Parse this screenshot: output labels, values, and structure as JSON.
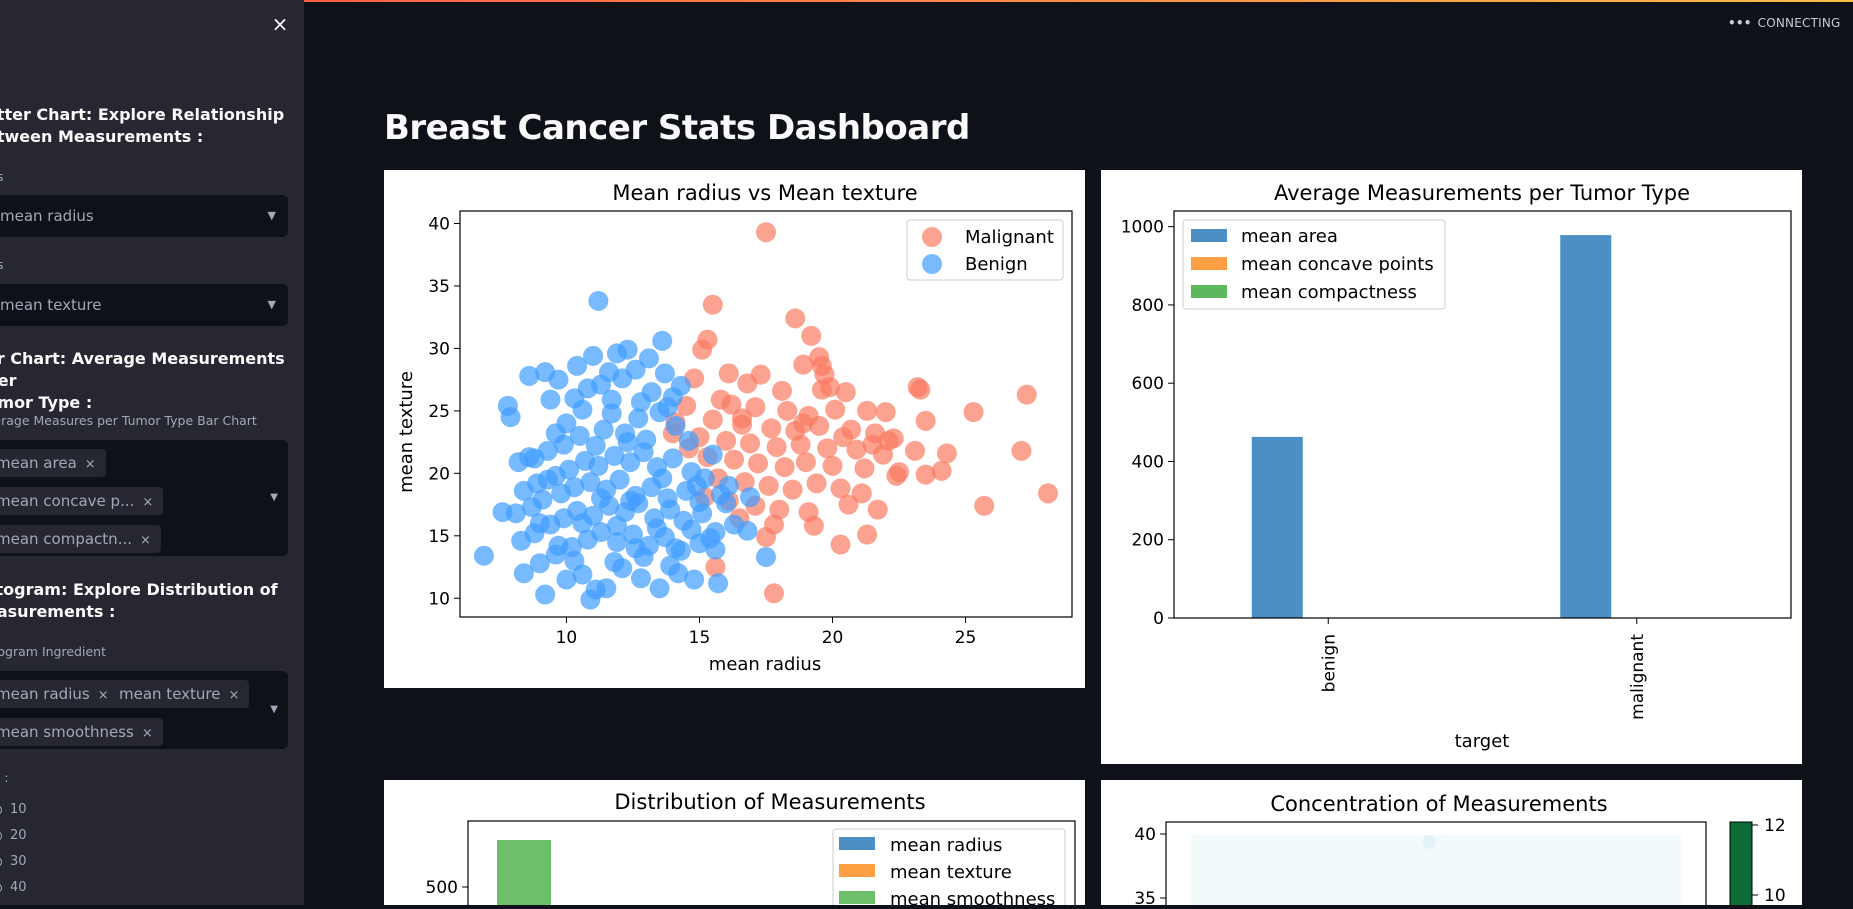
{
  "status": {
    "dots": "•••",
    "text": "CONNECTING"
  },
  "page_title": "Breast Cancer Stats Dashboard",
  "sidebar": {
    "close": "×",
    "scatter_heading": "atter Chart: Explore Relationship etween Measurements :",
    "scatter_heading_l1": "atter Chart: Explore Relationship",
    "scatter_heading_l2": "etween Measurements :",
    "x_label": "xis",
    "x_value": "mean radius",
    "y_label": "xis",
    "y_value": "mean texture",
    "bar_heading_l1": "ar Chart: Average Measurements Per",
    "bar_heading_l2": "umor Type :",
    "bar_label": "verage Measures per Tumor Type Bar Chart",
    "bar_chips": [
      "mean area",
      "mean concave p...",
      "mean compactn..."
    ],
    "hist_heading_l1": "stogram: Explore Distribution of",
    "hist_heading_l2": "easurements :",
    "hist_label": "stogram Ingredient",
    "hist_chips": [
      "mean radius",
      "mean texture",
      "mean smoothness"
    ],
    "bins_label": "ns :",
    "bins": [
      "10",
      "20",
      "30",
      "40"
    ],
    "chip_x": "×",
    "caret": "▼"
  },
  "colors": {
    "malignant": "#fa7a62",
    "benign": "#3f9cff",
    "area": "#4c8fc4",
    "concave": "#ff9f43",
    "compact": "#5cb85c",
    "smooth": "#6dbf6a"
  },
  "chart_data": [
    {
      "type": "scatter",
      "title": "Mean radius vs Mean texture",
      "xlabel": "mean radius",
      "ylabel": "mean texture",
      "xlim": [
        6,
        29
      ],
      "ylim": [
        8.5,
        41
      ],
      "xticks": [
        10,
        15,
        20,
        25
      ],
      "yticks": [
        10,
        15,
        20,
        25,
        30,
        35,
        40
      ],
      "legend": "top-right",
      "series": [
        {
          "name": "Malignant",
          "points": [
            [
              17.5,
              39.3
            ],
            [
              15.5,
              33.5
            ],
            [
              18.6,
              32.4
            ],
            [
              19.2,
              31.0
            ],
            [
              15.3,
              30.7
            ],
            [
              15.1,
              29.9
            ],
            [
              18.9,
              28.7
            ],
            [
              19.6,
              28.6
            ],
            [
              19.5,
              29.3
            ],
            [
              16.1,
              28.0
            ],
            [
              17.3,
              27.9
            ],
            [
              14.8,
              27.6
            ],
            [
              16.8,
              27.2
            ],
            [
              18.1,
              26.6
            ],
            [
              19.6,
              26.7
            ],
            [
              19.9,
              26.9
            ],
            [
              20.5,
              26.5
            ],
            [
              23.2,
              26.9
            ],
            [
              23.3,
              26.7
            ],
            [
              27.3,
              26.3
            ],
            [
              15.8,
              25.9
            ],
            [
              14.5,
              25.4
            ],
            [
              16.2,
              25.5
            ],
            [
              17.1,
              25.3
            ],
            [
              18.3,
              25.0
            ],
            [
              19.1,
              24.6
            ],
            [
              20.1,
              25.1
            ],
            [
              21.3,
              25.0
            ],
            [
              22.0,
              24.9
            ],
            [
              25.3,
              24.9
            ],
            [
              23.5,
              24.2
            ],
            [
              14.1,
              24.1
            ],
            [
              15.5,
              24.3
            ],
            [
              16.6,
              23.9
            ],
            [
              17.7,
              23.6
            ],
            [
              18.6,
              23.4
            ],
            [
              19.5,
              23.8
            ],
            [
              20.7,
              23.5
            ],
            [
              21.6,
              23.2
            ],
            [
              22.3,
              22.8
            ],
            [
              15.0,
              22.9
            ],
            [
              16.0,
              22.6
            ],
            [
              16.9,
              22.4
            ],
            [
              17.9,
              22.1
            ],
            [
              18.8,
              22.3
            ],
            [
              19.8,
              22.0
            ],
            [
              20.9,
              21.9
            ],
            [
              21.9,
              21.5
            ],
            [
              23.1,
              21.8
            ],
            [
              24.3,
              21.6
            ],
            [
              27.1,
              21.8
            ],
            [
              15.3,
              21.3
            ],
            [
              16.3,
              21.1
            ],
            [
              17.2,
              20.8
            ],
            [
              18.2,
              20.5
            ],
            [
              19.0,
              20.9
            ],
            [
              20.0,
              20.6
            ],
            [
              21.2,
              20.4
            ],
            [
              22.5,
              20.1
            ],
            [
              24.1,
              20.2
            ],
            [
              28.1,
              18.4
            ],
            [
              15.7,
              19.6
            ],
            [
              16.7,
              19.3
            ],
            [
              17.6,
              19.0
            ],
            [
              18.5,
              18.7
            ],
            [
              19.4,
              19.2
            ],
            [
              20.3,
              18.8
            ],
            [
              21.1,
              18.4
            ],
            [
              22.4,
              19.8
            ],
            [
              23.5,
              19.9
            ],
            [
              15.2,
              18.1
            ],
            [
              16.1,
              17.8
            ],
            [
              17.1,
              17.4
            ],
            [
              18.0,
              17.1
            ],
            [
              19.1,
              16.9
            ],
            [
              20.6,
              17.5
            ],
            [
              21.7,
              17.1
            ],
            [
              25.7,
              17.4
            ],
            [
              16.5,
              16.4
            ],
            [
              17.8,
              15.9
            ],
            [
              19.3,
              15.8
            ],
            [
              20.3,
              14.3
            ],
            [
              21.3,
              15.1
            ],
            [
              17.5,
              14.9
            ],
            [
              15.6,
              12.5
            ],
            [
              17.8,
              10.4
            ],
            [
              14.6,
              22.0
            ],
            [
              16.6,
              24.4
            ],
            [
              18.9,
              24.0
            ],
            [
              20.4,
              22.9
            ],
            [
              22.1,
              22.6
            ],
            [
              14.0,
              23.2
            ],
            [
              19.7,
              27.9
            ],
            [
              21.5,
              22.3
            ]
          ]
        },
        {
          "name": "Benign",
          "points": [
            [
              11.2,
              33.8
            ],
            [
              7.8,
              25.4
            ],
            [
              7.9,
              24.5
            ],
            [
              8.6,
              27.8
            ],
            [
              9.2,
              28.1
            ],
            [
              9.7,
              27.5
            ],
            [
              11.0,
              29.4
            ],
            [
              11.9,
              29.6
            ],
            [
              12.3,
              29.9
            ],
            [
              13.1,
              29.2
            ],
            [
              13.6,
              30.6
            ],
            [
              12.6,
              28.3
            ],
            [
              11.6,
              28.1
            ],
            [
              10.4,
              28.6
            ],
            [
              13.7,
              28.0
            ],
            [
              14.3,
              27.0
            ],
            [
              10.8,
              26.8
            ],
            [
              11.3,
              27.1
            ],
            [
              12.1,
              27.6
            ],
            [
              13.2,
              26.5
            ],
            [
              14.0,
              26.1
            ],
            [
              9.4,
              25.9
            ],
            [
              10.6,
              25.1
            ],
            [
              11.7,
              24.8
            ],
            [
              12.7,
              24.4
            ],
            [
              13.5,
              24.9
            ],
            [
              8.2,
              20.9
            ],
            [
              8.8,
              21.2
            ],
            [
              9.3,
              21.8
            ],
            [
              9.9,
              22.3
            ],
            [
              10.5,
              23.0
            ],
            [
              11.4,
              23.5
            ],
            [
              12.2,
              23.2
            ],
            [
              13.0,
              22.7
            ],
            [
              14.1,
              23.8
            ],
            [
              14.6,
              22.6
            ],
            [
              8.4,
              18.6
            ],
            [
              8.9,
              19.2
            ],
            [
              9.6,
              19.8
            ],
            [
              10.1,
              20.3
            ],
            [
              10.7,
              21.0
            ],
            [
              11.2,
              20.6
            ],
            [
              11.8,
              21.4
            ],
            [
              12.4,
              20.9
            ],
            [
              12.9,
              21.7
            ],
            [
              13.4,
              20.5
            ],
            [
              14.0,
              21.2
            ],
            [
              14.7,
              20.1
            ],
            [
              15.2,
              19.6
            ],
            [
              8.1,
              16.8
            ],
            [
              8.7,
              17.3
            ],
            [
              9.1,
              17.9
            ],
            [
              9.8,
              18.4
            ],
            [
              10.3,
              18.9
            ],
            [
              10.9,
              19.3
            ],
            [
              11.5,
              18.7
            ],
            [
              12.0,
              19.5
            ],
            [
              12.6,
              18.2
            ],
            [
              13.2,
              18.9
            ],
            [
              13.8,
              18.0
            ],
            [
              14.5,
              18.6
            ],
            [
              15.0,
              17.7
            ],
            [
              15.8,
              18.3
            ],
            [
              6.9,
              13.4
            ],
            [
              8.3,
              14.6
            ],
            [
              8.8,
              15.2
            ],
            [
              9.4,
              15.9
            ],
            [
              9.9,
              16.4
            ],
            [
              10.4,
              17.0
            ],
            [
              11.0,
              16.6
            ],
            [
              11.6,
              17.4
            ],
            [
              12.2,
              16.9
            ],
            [
              12.7,
              17.6
            ],
            [
              13.3,
              16.4
            ],
            [
              13.9,
              17.1
            ],
            [
              14.4,
              16.2
            ],
            [
              15.1,
              16.8
            ],
            [
              15.6,
              15.3
            ],
            [
              16.3,
              15.9
            ],
            [
              16.9,
              18.1
            ],
            [
              8.4,
              12.0
            ],
            [
              9.0,
              12.8
            ],
            [
              9.6,
              13.5
            ],
            [
              10.2,
              14.1
            ],
            [
              10.8,
              14.7
            ],
            [
              11.3,
              15.3
            ],
            [
              11.9,
              14.5
            ],
            [
              12.5,
              15.1
            ],
            [
              13.1,
              14.2
            ],
            [
              13.7,
              14.9
            ],
            [
              14.3,
              13.8
            ],
            [
              15.0,
              14.4
            ],
            [
              15.6,
              13.9
            ],
            [
              10.6,
              11.9
            ],
            [
              11.1,
              10.7
            ],
            [
              11.5,
              10.8
            ],
            [
              12.1,
              12.4
            ],
            [
              12.8,
              11.6
            ],
            [
              13.5,
              10.8
            ],
            [
              14.2,
              12.0
            ],
            [
              14.8,
              11.5
            ],
            [
              15.7,
              11.2
            ],
            [
              10.9,
              9.9
            ],
            [
              17.5,
              13.3
            ],
            [
              9.2,
              10.3
            ],
            [
              10.0,
              11.5
            ],
            [
              11.8,
              12.9
            ],
            [
              12.9,
              13.3
            ],
            [
              13.9,
              12.6
            ],
            [
              12.3,
              22.5
            ],
            [
              11.1,
              22.2
            ],
            [
              10.0,
              24.0
            ],
            [
              13.8,
              25.3
            ],
            [
              12.8,
              25.7
            ],
            [
              11.7,
              25.9
            ],
            [
              9.6,
              23.2
            ],
            [
              10.3,
              26.0
            ],
            [
              9.0,
              16.0
            ],
            [
              9.7,
              14.2
            ],
            [
              14.9,
              19.0
            ],
            [
              15.5,
              21.5
            ],
            [
              13.6,
              19.6
            ],
            [
              12.4,
              17.8
            ],
            [
              11.3,
              18.0
            ],
            [
              10.6,
              16.0
            ],
            [
              11.9,
              15.8
            ],
            [
              12.6,
              14.0
            ],
            [
              13.4,
              15.6
            ],
            [
              14.1,
              14.0
            ],
            [
              10.3,
              13.0
            ],
            [
              9.3,
              19.5
            ],
            [
              8.6,
              21.3
            ],
            [
              7.6,
              16.9
            ],
            [
              16.1,
              19.0
            ],
            [
              16.0,
              17.6
            ],
            [
              15.4,
              14.8
            ],
            [
              14.7,
              15.5
            ],
            [
              16.8,
              15.4
            ]
          ]
        }
      ]
    },
    {
      "type": "bar",
      "title": "Average Measurements per Tumor Type",
      "xlabel": "target",
      "ylabel": "",
      "categories": [
        "benign",
        "malignant"
      ],
      "ylim": [
        0,
        1040
      ],
      "yticks": [
        0,
        200,
        400,
        600,
        800,
        1000
      ],
      "legend": "top-left",
      "series": [
        {
          "name": "mean area",
          "values": [
            462.8,
            978.4
          ]
        },
        {
          "name": "mean concave points",
          "values": [
            0.026,
            0.088
          ]
        },
        {
          "name": "mean compactness",
          "values": [
            0.08,
            0.145
          ]
        }
      ]
    },
    {
      "type": "bar",
      "title": "Distribution of Measurements",
      "yticks": [
        500
      ],
      "legend": "top-right",
      "series": [
        {
          "name": "mean radius"
        },
        {
          "name": "mean texture"
        },
        {
          "name": "mean smoothness"
        }
      ]
    },
    {
      "type": "heatmap",
      "title": "Concentration of Measurements",
      "yticks": [
        35,
        40
      ],
      "colorbar_ticks": [
        10,
        12
      ]
    }
  ]
}
